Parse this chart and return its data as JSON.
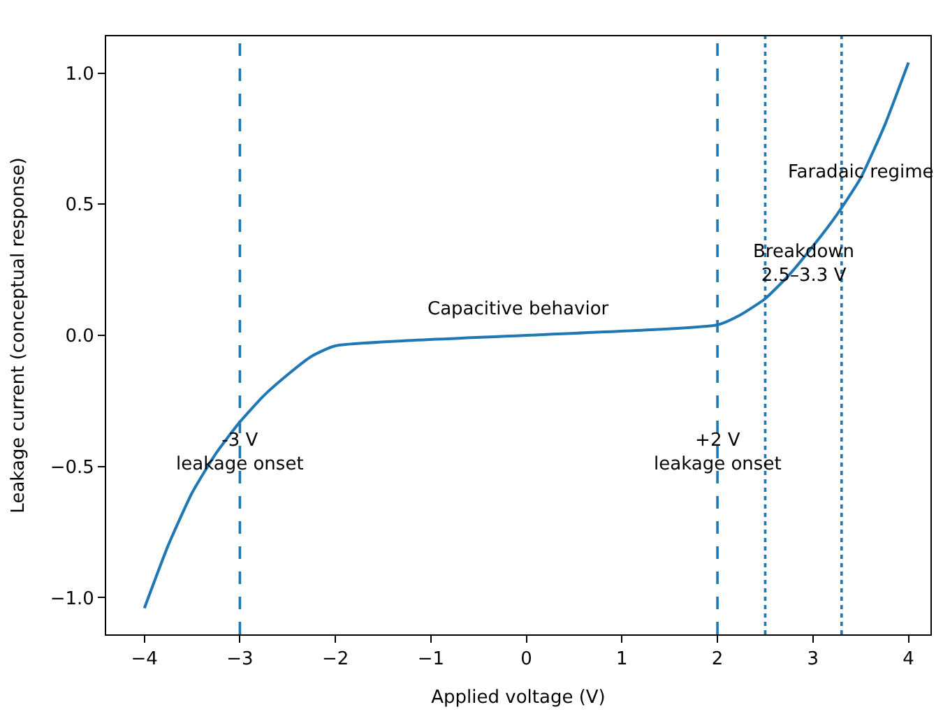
{
  "chart_data": {
    "type": "line",
    "xlabel": "Applied voltage (V)",
    "ylabel": "Leakage current (conceptual response)",
    "x": [
      -4,
      -3.75,
      -3.5,
      -3.25,
      -3,
      -2.75,
      -2.5,
      -2.25,
      -2,
      2,
      2.25,
      2.5,
      2.75,
      3,
      3.25,
      3.5,
      3.75,
      4
    ],
    "series": [
      {
        "color": "#1f77b4",
        "values": [
          -1.04,
          -0.8,
          -0.6,
          -0.45,
          -0.33,
          -0.23,
          -0.15,
          -0.08,
          -0.04,
          0.04,
          0.08,
          0.14,
          0.23,
          0.34,
          0.46,
          0.6,
          0.8,
          1.04
        ]
      }
    ],
    "xlim": [
      -4.4,
      4.23
    ],
    "ylim": [
      -1.14,
      1.14
    ],
    "xticks": [
      {
        "value": -4,
        "label": "−4"
      },
      {
        "value": -3,
        "label": "−3"
      },
      {
        "value": -2,
        "label": "−2"
      },
      {
        "value": -1,
        "label": "−1"
      },
      0,
      1,
      2,
      3,
      4
    ],
    "yticks": [
      {
        "value": -1,
        "label": "−1.0"
      },
      {
        "value": -0.5,
        "label": "−0.5"
      },
      {
        "value": 0,
        "label": "0.0"
      },
      {
        "value": 0.5,
        "label": "0.5"
      },
      {
        "value": 1,
        "label": "1.0"
      }
    ],
    "marker": "none",
    "line_style": "solid",
    "ref_lines": [
      {
        "axis": "x",
        "value": -3,
        "color": "#1f77b4",
        "line_style": "dashed"
      },
      {
        "axis": "x",
        "value": 2,
        "color": "#1f77b4",
        "line_style": "dashed"
      },
      {
        "axis": "x",
        "value": 2.5,
        "color": "#1f77b4",
        "line_style": "dotted"
      },
      {
        "axis": "x",
        "value": 3.3,
        "color": "#1f77b4",
        "line_style": "dotted"
      }
    ],
    "annotations": [
      {
        "text": "-3 V\nleakage onset",
        "x": -3,
        "y": -0.45
      },
      "Capacitive behavior",
      {
        "text": "+2 V\nleakage onset",
        "x": 2,
        "y": -0.45
      },
      {
        "text": "Breakdown\n2.5–3.3 V",
        "x": 2.9,
        "y": 0.27
      },
      {
        "text": "Faradaic regime",
        "x": 3.5,
        "y": 0.62
      }
    ]
  }
}
